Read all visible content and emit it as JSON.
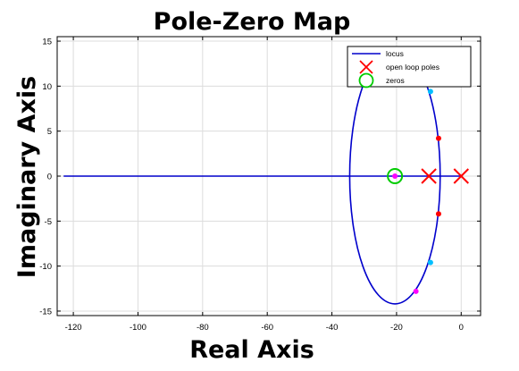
{
  "chart_data": {
    "type": "scatter",
    "title": "Pole-Zero Map",
    "xlabel": "Real Axis",
    "ylabel": "Imaginary Axis",
    "xlim": [
      -125,
      6
    ],
    "ylim": [
      -15.5,
      15.5
    ],
    "xticks": [
      -120,
      -100,
      -80,
      -60,
      -40,
      -20,
      0
    ],
    "yticks": [
      -15,
      -10,
      -5,
      0,
      5,
      10,
      15
    ],
    "grid": true,
    "legend_position": "top-right",
    "legend": [
      "locus",
      "open loop poles",
      "zeros"
    ],
    "locus_real_axis": {
      "from": -123,
      "to": 0
    },
    "locus_ellipse": {
      "center": [
        -20.5,
        0
      ],
      "semi_axis_real": 14,
      "semi_axis_imag": 14.2
    },
    "open_loop_poles": [
      [
        0,
        0
      ],
      [
        -10,
        0
      ]
    ],
    "zeros": [
      [
        -20.5,
        0
      ]
    ],
    "markers": [
      {
        "x": -14,
        "y": 12.8,
        "color": "#ff00ff"
      },
      {
        "x": -14,
        "y": -12.8,
        "color": "#ff00ff"
      },
      {
        "x": -9.5,
        "y": 9.4,
        "color": "#00bfff"
      },
      {
        "x": -9.5,
        "y": -9.6,
        "color": "#00bfff"
      },
      {
        "x": -7,
        "y": 4.2,
        "color": "#ff0000"
      },
      {
        "x": -7,
        "y": -4.2,
        "color": "#ff0000"
      },
      {
        "x": -20.5,
        "y": 0,
        "color": "#ff00ff"
      }
    ],
    "colors": {
      "locus": "#0000cc",
      "pole": "#ff0000",
      "zero": "#00cc00"
    }
  }
}
